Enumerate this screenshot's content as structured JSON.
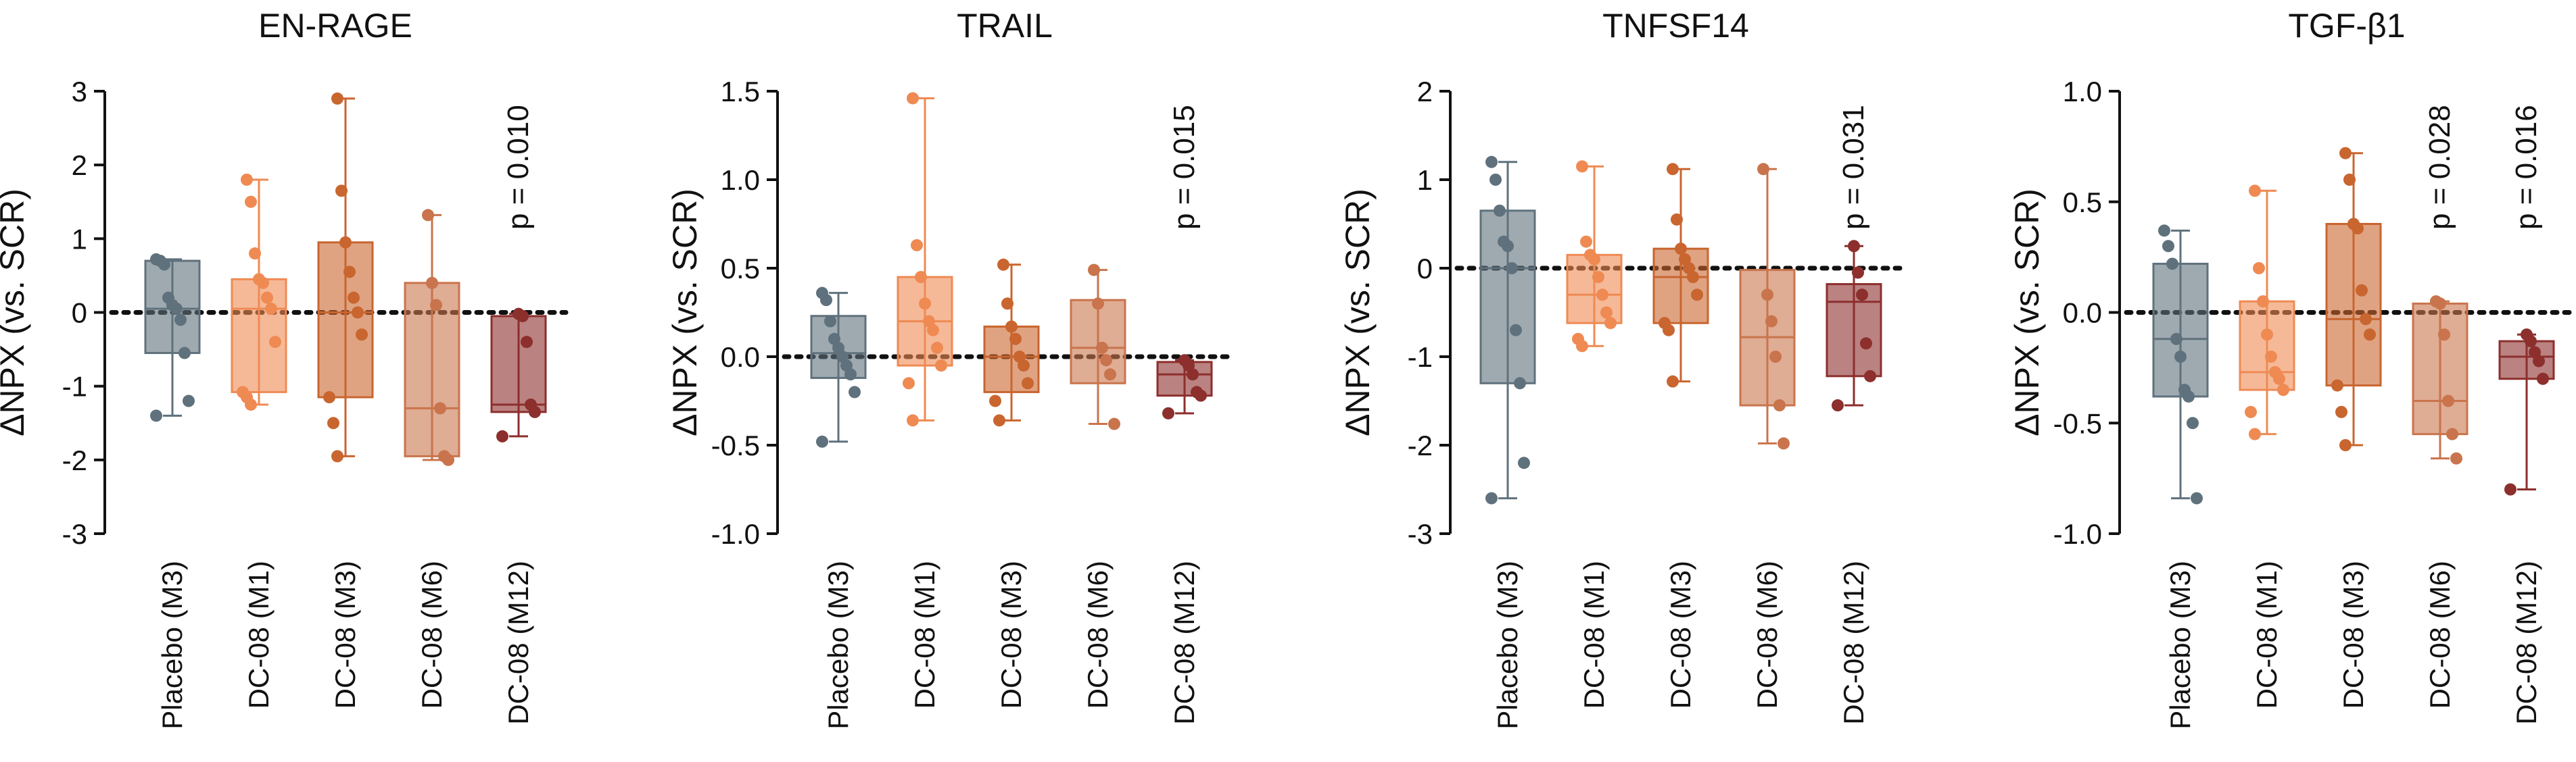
{
  "colors": {
    "Placebo (M3)": "#5f717c",
    "DC-08 (M1)": "#ef8a53",
    "DC-08 (M3)": "#c9652f",
    "DC-08 (M6)": "#c9744c",
    "DC-08 (M12)": "#8c2f2d"
  },
  "chart_data": [
    {
      "type": "box",
      "title": "EN-RAGE",
      "ylabel": "ΔNPX (vs. SCR)",
      "ylim": [
        -3,
        3
      ],
      "yticks": [
        -3,
        -2,
        -1,
        0,
        1,
        2,
        3
      ],
      "ytick_labels": [
        "-3",
        "-2",
        "-1",
        "0",
        "1",
        "2",
        "3"
      ],
      "reference_line": 0,
      "categories": [
        "Placebo (M3)",
        "DC-08 (M1)",
        "DC-08 (M3)",
        "DC-08 (M6)",
        "DC-08 (M12)"
      ],
      "series": [
        {
          "name": "Placebo (M3)",
          "q1": -0.55,
          "median": 0.05,
          "q3": 0.7,
          "min": -1.4,
          "max": 0.72,
          "points": [
            0.72,
            0.7,
            0.65,
            0.2,
            0.1,
            0.05,
            -0.1,
            -0.55,
            -1.2,
            -1.4
          ]
        },
        {
          "name": "DC-08 (M1)",
          "q1": -1.08,
          "median": 0.05,
          "q3": 0.45,
          "min": -1.25,
          "max": 1.8,
          "points": [
            1.8,
            1.5,
            0.8,
            0.45,
            0.4,
            0.2,
            0.05,
            -0.4,
            -1.08,
            -1.15,
            -1.25
          ]
        },
        {
          "name": "DC-08 (M3)",
          "q1": -1.15,
          "median": 0.0,
          "q3": 0.95,
          "min": -1.95,
          "max": 2.9,
          "points": [
            2.9,
            1.65,
            0.95,
            0.55,
            0.2,
            0.0,
            -0.3,
            -1.15,
            -1.5,
            -1.95
          ]
        },
        {
          "name": "DC-08 (M6)",
          "q1": -1.95,
          "median": -1.3,
          "q3": 0.4,
          "min": -2.0,
          "max": 1.32,
          "points": [
            1.32,
            0.4,
            0.1,
            -1.3,
            -1.95,
            -2.0
          ]
        },
        {
          "name": "DC-08 (M12)",
          "q1": -1.35,
          "median": -1.25,
          "q3": -0.05,
          "min": -1.68,
          "max": -0.02,
          "points": [
            -0.02,
            -0.05,
            -0.4,
            -1.25,
            -1.35,
            -1.68
          ]
        }
      ],
      "annotations": [
        {
          "text": "p = 0.010",
          "category": "DC-08 (M12)"
        }
      ]
    },
    {
      "type": "box",
      "title": "TRAIL",
      "ylabel": "ΔNPX (vs. SCR)",
      "ylim": [
        -1.0,
        1.5
      ],
      "yticks": [
        -1.0,
        -0.5,
        0.0,
        0.5,
        1.0,
        1.5
      ],
      "ytick_labels": [
        "-1.0",
        "-0.5",
        "0.0",
        "0.5",
        "1.0",
        "1.5"
      ],
      "reference_line": 0,
      "categories": [
        "Placebo (M3)",
        "DC-08 (M1)",
        "DC-08 (M3)",
        "DC-08 (M6)",
        "DC-08 (M12)"
      ],
      "series": [
        {
          "name": "Placebo (M3)",
          "q1": -0.12,
          "median": 0.02,
          "q3": 0.23,
          "min": -0.48,
          "max": 0.36,
          "points": [
            0.36,
            0.32,
            0.2,
            0.1,
            0.05,
            0.0,
            -0.05,
            -0.1,
            -0.2,
            -0.48
          ]
        },
        {
          "name": "DC-08 (M1)",
          "q1": -0.05,
          "median": 0.2,
          "q3": 0.45,
          "min": -0.36,
          "max": 1.46,
          "points": [
            1.46,
            0.63,
            0.45,
            0.3,
            0.2,
            0.15,
            0.05,
            -0.05,
            -0.15,
            -0.36
          ]
        },
        {
          "name": "DC-08 (M3)",
          "q1": -0.2,
          "median": 0.0,
          "q3": 0.17,
          "min": -0.36,
          "max": 0.52,
          "points": [
            0.52,
            0.3,
            0.17,
            0.1,
            0.0,
            -0.05,
            -0.15,
            -0.25,
            -0.36
          ]
        },
        {
          "name": "DC-08 (M6)",
          "q1": -0.15,
          "median": 0.05,
          "q3": 0.32,
          "min": -0.38,
          "max": 0.49,
          "points": [
            0.49,
            0.3,
            0.05,
            -0.02,
            -0.1,
            -0.38
          ]
        },
        {
          "name": "DC-08 (M12)",
          "q1": -0.22,
          "median": -0.1,
          "q3": -0.03,
          "min": -0.32,
          "max": -0.02,
          "points": [
            -0.02,
            -0.05,
            -0.1,
            -0.2,
            -0.22,
            -0.32
          ]
        }
      ],
      "annotations": [
        {
          "text": "p = 0.015",
          "category": "DC-08 (M12)"
        }
      ]
    },
    {
      "type": "box",
      "title": "TNFSF14",
      "ylabel": "ΔNPX (vs. SCR)",
      "ylim": [
        -3,
        2
      ],
      "yticks": [
        -3,
        -2,
        -1,
        0,
        1,
        2
      ],
      "ytick_labels": [
        "-3",
        "-2",
        "-1",
        "0",
        "1",
        "2"
      ],
      "reference_line": 0,
      "categories": [
        "Placebo (M3)",
        "DC-08 (M1)",
        "DC-08 (M3)",
        "DC-08 (M6)",
        "DC-08 (M12)"
      ],
      "series": [
        {
          "name": "Placebo (M3)",
          "q1": -1.3,
          "median": 0.0,
          "q3": 0.65,
          "min": -2.6,
          "max": 1.2,
          "points": [
            1.2,
            1.0,
            0.65,
            0.3,
            0.25,
            0.0,
            -0.7,
            -1.3,
            -2.2,
            -2.6
          ]
        },
        {
          "name": "DC-08 (M1)",
          "q1": -0.62,
          "median": -0.3,
          "q3": 0.15,
          "min": -0.88,
          "max": 1.15,
          "points": [
            1.15,
            0.3,
            0.15,
            0.1,
            -0.1,
            -0.3,
            -0.5,
            -0.62,
            -0.8,
            -0.88
          ]
        },
        {
          "name": "DC-08 (M3)",
          "q1": -0.62,
          "median": -0.1,
          "q3": 0.22,
          "min": -1.28,
          "max": 1.12,
          "points": [
            1.12,
            0.55,
            0.22,
            0.1,
            0.0,
            -0.1,
            -0.3,
            -0.62,
            -0.7,
            -1.28
          ]
        },
        {
          "name": "DC-08 (M6)",
          "q1": -1.55,
          "median": -0.78,
          "q3": -0.02,
          "min": -1.98,
          "max": 1.12,
          "points": [
            1.12,
            -0.3,
            -0.6,
            -1.0,
            -1.55,
            -1.98
          ]
        },
        {
          "name": "DC-08 (M12)",
          "q1": -1.22,
          "median": -0.38,
          "q3": -0.18,
          "min": -1.55,
          "max": 0.25,
          "points": [
            0.25,
            -0.05,
            -0.3,
            -0.85,
            -1.22,
            -1.55
          ]
        }
      ],
      "annotations": [
        {
          "text": "p = 0.031",
          "category": "DC-08 (M12)"
        }
      ]
    },
    {
      "type": "box",
      "title": "TGF-β1",
      "ylabel": "ΔNPX (vs. SCR)",
      "ylim": [
        -1.0,
        1.0
      ],
      "yticks": [
        -1.0,
        -0.5,
        0.0,
        0.5,
        1.0
      ],
      "ytick_labels": [
        "-1.0",
        "-0.5",
        "0.0",
        "0.5",
        "1.0"
      ],
      "reference_line": 0,
      "categories": [
        "Placebo (M3)",
        "DC-08 (M1)",
        "DC-08 (M3)",
        "DC-08 (M6)",
        "DC-08 (M12)"
      ],
      "series": [
        {
          "name": "Placebo (M3)",
          "q1": -0.38,
          "median": -0.12,
          "q3": 0.22,
          "min": -0.84,
          "max": 0.37,
          "points": [
            0.37,
            0.3,
            0.22,
            -0.12,
            -0.2,
            -0.35,
            -0.38,
            -0.5,
            -0.84
          ]
        },
        {
          "name": "DC-08 (M1)",
          "q1": -0.35,
          "median": -0.27,
          "q3": 0.05,
          "min": -0.55,
          "max": 0.55,
          "points": [
            0.55,
            0.2,
            0.05,
            -0.1,
            -0.2,
            -0.27,
            -0.3,
            -0.35,
            -0.45,
            -0.55
          ]
        },
        {
          "name": "DC-08 (M3)",
          "q1": -0.33,
          "median": -0.03,
          "q3": 0.4,
          "min": -0.6,
          "max": 0.72,
          "points": [
            0.72,
            0.6,
            0.4,
            0.38,
            0.1,
            -0.03,
            -0.1,
            -0.33,
            -0.45,
            -0.6
          ]
        },
        {
          "name": "DC-08 (M6)",
          "q1": -0.55,
          "median": -0.4,
          "q3": 0.04,
          "min": -0.66,
          "max": 0.05,
          "points": [
            0.05,
            0.04,
            -0.1,
            -0.4,
            -0.55,
            -0.66
          ]
        },
        {
          "name": "DC-08 (M12)",
          "q1": -0.3,
          "median": -0.2,
          "q3": -0.13,
          "min": -0.8,
          "max": -0.1,
          "points": [
            -0.1,
            -0.13,
            -0.18,
            -0.22,
            -0.3,
            -0.8
          ]
        }
      ],
      "annotations": [
        {
          "text": "p = 0.028",
          "category": "DC-08 (M6)"
        },
        {
          "text": "p = 0.016",
          "category": "DC-08 (M12)"
        }
      ]
    }
  ]
}
